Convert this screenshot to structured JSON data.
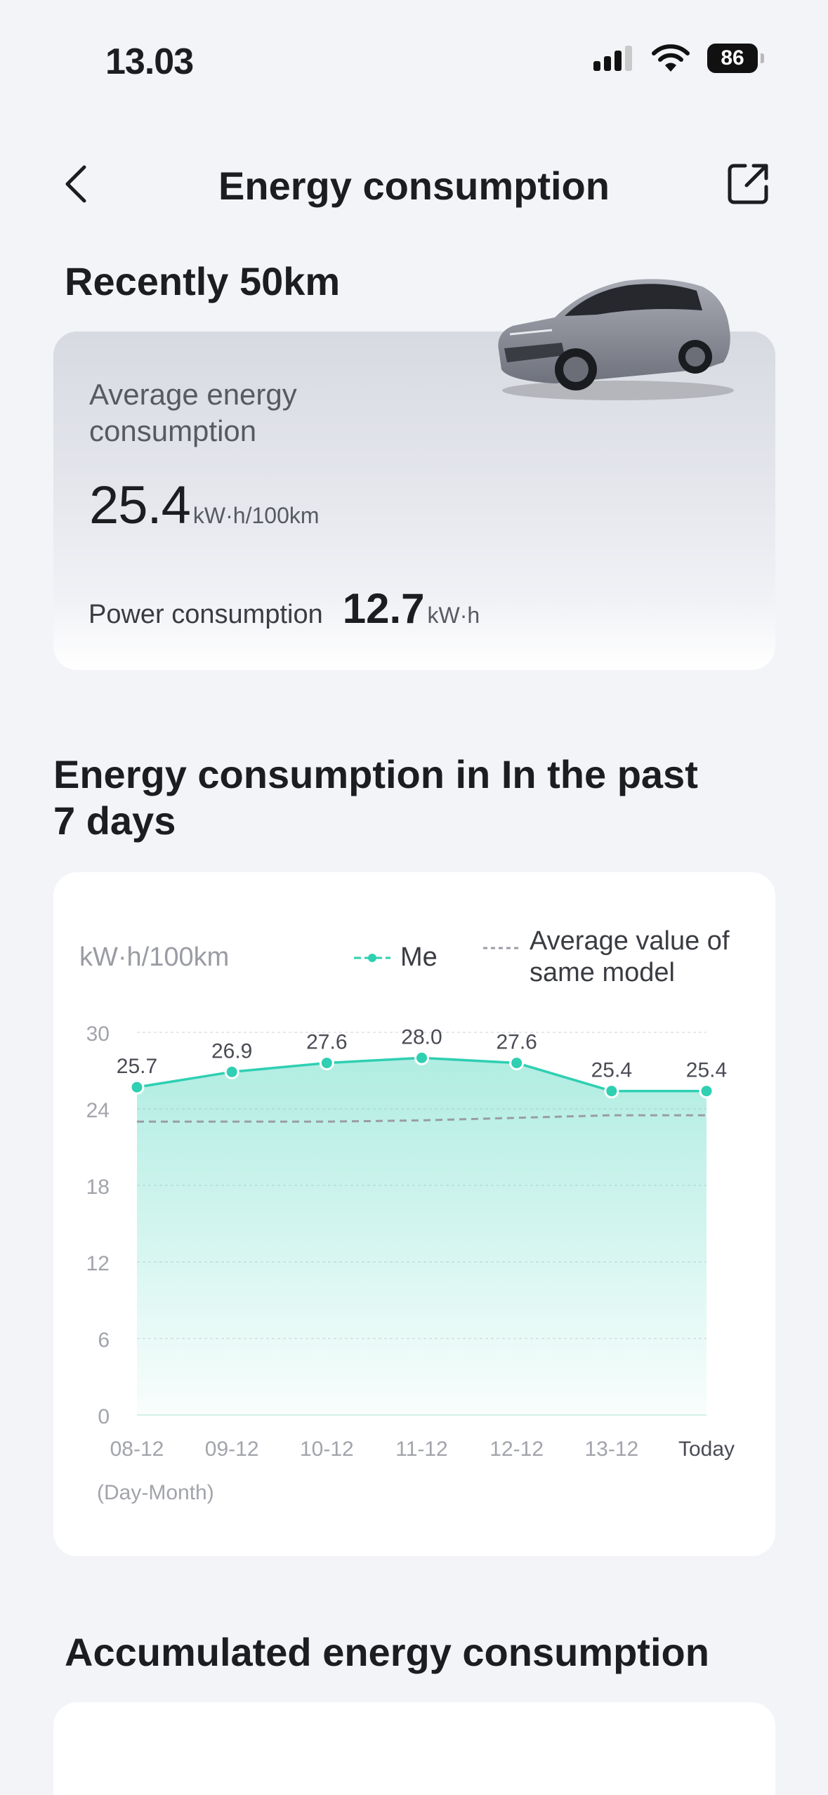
{
  "status_bar": {
    "time": "13.03",
    "battery": "86"
  },
  "nav": {
    "title": "Energy consumption",
    "back_icon": "chevron-left-icon",
    "share_icon": "share-icon"
  },
  "summary": {
    "section_title": "Recently 50km",
    "avg_label": "Average energy consumption",
    "avg_value": "25.4",
    "avg_unit": "kW·h/100km",
    "power_label": "Power consumption",
    "power_value": "12.7",
    "power_unit": "kW·h"
  },
  "chart_section": {
    "title": "Energy consumption in In the past 7 days"
  },
  "chart_data": {
    "type": "line",
    "ylabel": "kW·h/100km",
    "xlabel_note": "(Day-Month)",
    "categories": [
      "08-12",
      "09-12",
      "10-12",
      "11-12",
      "12-12",
      "13-12",
      "Today"
    ],
    "ylim": [
      0,
      30
    ],
    "yticks": [
      0,
      6,
      12,
      18,
      24,
      30
    ],
    "grid": true,
    "legend": "top-right",
    "series": [
      {
        "name": "Me",
        "values": [
          25.7,
          26.9,
          27.6,
          28.0,
          27.6,
          25.4,
          25.4
        ],
        "color": "#2fcfb2",
        "labels": [
          "25.7",
          "26.9",
          "27.6",
          "28.0",
          "27.6",
          "25.4",
          "25.4"
        ]
      },
      {
        "name": "Average value of same model",
        "values": [
          23.0,
          23.0,
          23.0,
          23.1,
          23.3,
          23.5,
          23.5
        ],
        "color": "#9a9ca3",
        "style": "dashed"
      }
    ]
  },
  "accumulated": {
    "title": "Accumulated energy consumption"
  },
  "colors": {
    "accent": "#2fcfb2",
    "background": "#f3f4f8",
    "text": "#1c1d21"
  }
}
